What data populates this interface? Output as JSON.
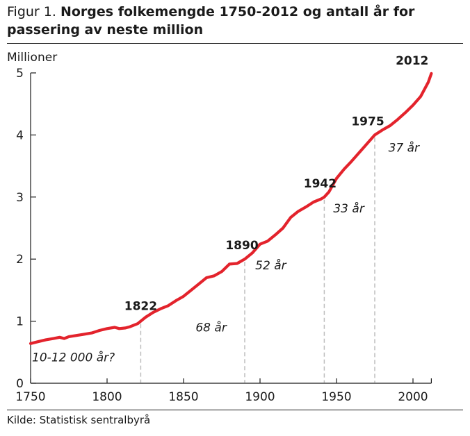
{
  "title": {
    "prefix": "Figur 1.",
    "main": "Norges folkemengde 1750-2012 og antall år for passering av neste million"
  },
  "source": "Kilde: Statistisk sentralbyrå",
  "chart_data": {
    "type": "line",
    "title": "Norges folkemengde 1750-2012 og antall år for passering av neste million",
    "ylabel": "Millioner",
    "xlabel": "",
    "xlim": [
      1750,
      2012
    ],
    "ylim": [
      0,
      5
    ],
    "xticks": [
      1750,
      1800,
      1850,
      1900,
      1950,
      2000
    ],
    "yticks": [
      0,
      1,
      2,
      3,
      4,
      5
    ],
    "grid": false,
    "line_color": "#e3232c",
    "series": [
      {
        "x": [
          1750,
          1755,
          1760,
          1765,
          1769,
          1772,
          1775,
          1780,
          1785,
          1790,
          1795,
          1800,
          1805,
          1808,
          1812,
          1815,
          1820,
          1822,
          1825,
          1830,
          1835,
          1840,
          1845,
          1850,
          1855,
          1860,
          1865,
          1870,
          1875,
          1880,
          1885,
          1890,
          1895,
          1900,
          1905,
          1910,
          1915,
          1920,
          1925,
          1930,
          1935,
          1940,
          1942,
          1945,
          1950,
          1955,
          1960,
          1965,
          1970,
          1975,
          1980,
          1985,
          1990,
          1995,
          2000,
          2005,
          2010,
          2012
        ],
        "y": [
          0.64,
          0.67,
          0.7,
          0.72,
          0.74,
          0.72,
          0.75,
          0.77,
          0.79,
          0.81,
          0.85,
          0.88,
          0.9,
          0.88,
          0.89,
          0.91,
          0.96,
          1.0,
          1.06,
          1.14,
          1.2,
          1.25,
          1.33,
          1.4,
          1.5,
          1.6,
          1.7,
          1.73,
          1.8,
          1.92,
          1.93,
          2.0,
          2.1,
          2.24,
          2.29,
          2.39,
          2.5,
          2.67,
          2.77,
          2.84,
          2.92,
          2.97,
          3.0,
          3.08,
          3.3,
          3.45,
          3.58,
          3.72,
          3.86,
          4.0,
          4.08,
          4.15,
          4.25,
          4.36,
          4.48,
          4.62,
          4.85,
          4.99
        ]
      }
    ],
    "milestones": [
      {
        "year": 1822,
        "value": 1,
        "label": "1822",
        "duration": "68 år"
      },
      {
        "year": 1890,
        "value": 2,
        "label": "1890",
        "duration": "52 år"
      },
      {
        "year": 1942,
        "value": 3,
        "label": "1942",
        "duration": "33 år"
      },
      {
        "year": 1975,
        "value": 4,
        "label": "1975",
        "duration": "37 år"
      },
      {
        "year": 2012,
        "value": 5,
        "label": "2012",
        "duration": ""
      }
    ],
    "initial_duration": "10-12 000 år?"
  }
}
